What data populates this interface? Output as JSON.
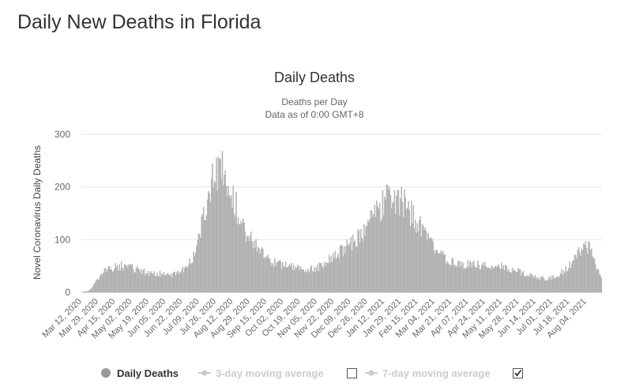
{
  "page": {
    "title": "Daily New Deaths in Florida"
  },
  "chart_data": {
    "type": "bar",
    "title": "Daily Deaths",
    "subtitle_lines": [
      "Deaths per Day",
      "Data as of 0:00 GMT+8"
    ],
    "ylabel": "Novel Coronavirus Daily Deaths",
    "xlabel": "",
    "ylim": [
      0,
      300
    ],
    "yticks": [
      0,
      100,
      200,
      300
    ],
    "grid": true,
    "x_start": "2020-03-12",
    "x_end": "2021-08-19",
    "xtick_labels": [
      "Mar 12, 2020",
      "Mar 29, 2020",
      "Apr 15, 2020",
      "May 02, 2020",
      "May 19, 2020",
      "Jun 05, 2020",
      "Jun 22, 2020",
      "Jul 09, 2020",
      "Jul 26, 2020",
      "Aug 12, 2020",
      "Aug 29, 2020",
      "Sep 15, 2020",
      "Oct 02, 2020",
      "Oct 19, 2020",
      "Nov 05, 2020",
      "Nov 22, 2020",
      "Dec 09, 2020",
      "Dec 26, 2020",
      "Jan 12, 2021",
      "Jan 29, 2021",
      "Feb 15, 2021",
      "Mar 04, 2021",
      "Mar 21, 2021",
      "Apr 07, 2021",
      "Apr 24, 2021",
      "May 11, 2021",
      "May 28, 2021",
      "Jun 14, 2021",
      "Jul 01, 2021",
      "Jul 18, 2021",
      "Aug 04, 2021"
    ],
    "series": [
      {
        "name": "Daily Deaths",
        "color": "#bdbdbd",
        "keypoints": [
          [
            "2020-03-12",
            0
          ],
          [
            "2020-03-18",
            2
          ],
          [
            "2020-03-22",
            8
          ],
          [
            "2020-03-26",
            18
          ],
          [
            "2020-03-31",
            30
          ],
          [
            "2020-04-04",
            40
          ],
          [
            "2020-04-10",
            45
          ],
          [
            "2020-04-16",
            48
          ],
          [
            "2020-04-22",
            50
          ],
          [
            "2020-04-28",
            48
          ],
          [
            "2020-05-04",
            45
          ],
          [
            "2020-05-10",
            40
          ],
          [
            "2020-05-20",
            36
          ],
          [
            "2020-05-30",
            35
          ],
          [
            "2020-06-08",
            33
          ],
          [
            "2020-06-18",
            35
          ],
          [
            "2020-06-25",
            45
          ],
          [
            "2020-07-02",
            65
          ],
          [
            "2020-07-09",
            110
          ],
          [
            "2020-07-15",
            165
          ],
          [
            "2020-07-20",
            200
          ],
          [
            "2020-07-26",
            222
          ],
          [
            "2020-08-01",
            228
          ],
          [
            "2020-08-06",
            215
          ],
          [
            "2020-08-12",
            180
          ],
          [
            "2020-08-18",
            145
          ],
          [
            "2020-08-24",
            120
          ],
          [
            "2020-08-30",
            100
          ],
          [
            "2020-09-05",
            85
          ],
          [
            "2020-09-12",
            70
          ],
          [
            "2020-09-20",
            58
          ],
          [
            "2020-09-28",
            52
          ],
          [
            "2020-10-08",
            48
          ],
          [
            "2020-10-18",
            44
          ],
          [
            "2020-10-28",
            45
          ],
          [
            "2020-11-07",
            48
          ],
          [
            "2020-11-15",
            58
          ],
          [
            "2020-11-25",
            72
          ],
          [
            "2020-12-05",
            88
          ],
          [
            "2020-12-12",
            98
          ],
          [
            "2020-12-20",
            110
          ],
          [
            "2020-12-28",
            130
          ],
          [
            "2021-01-05",
            155
          ],
          [
            "2021-01-12",
            172
          ],
          [
            "2021-01-18",
            185
          ],
          [
            "2021-01-24",
            178
          ],
          [
            "2021-02-01",
            165
          ],
          [
            "2021-02-08",
            150
          ],
          [
            "2021-02-15",
            130
          ],
          [
            "2021-02-22",
            108
          ],
          [
            "2021-03-01",
            90
          ],
          [
            "2021-03-08",
            75
          ],
          [
            "2021-03-15",
            62
          ],
          [
            "2021-03-22",
            56
          ],
          [
            "2021-04-01",
            52
          ],
          [
            "2021-04-12",
            53
          ],
          [
            "2021-04-24",
            52
          ],
          [
            "2021-05-05",
            50
          ],
          [
            "2021-05-15",
            46
          ],
          [
            "2021-05-25",
            40
          ],
          [
            "2021-06-05",
            34
          ],
          [
            "2021-06-15",
            28
          ],
          [
            "2021-06-25",
            26
          ],
          [
            "2021-07-03",
            30
          ],
          [
            "2021-07-12",
            40
          ],
          [
            "2021-07-20",
            55
          ],
          [
            "2021-07-27",
            75
          ],
          [
            "2021-08-02",
            88
          ],
          [
            "2021-08-07",
            85
          ],
          [
            "2021-08-12",
            55
          ],
          [
            "2021-08-16",
            40
          ],
          [
            "2021-08-19",
            25
          ]
        ]
      }
    ],
    "legend": {
      "placement": "bottom-center",
      "items": [
        {
          "label": "Daily Deaths",
          "state": "active"
        },
        {
          "label": "3-day moving average",
          "state": "hidden",
          "checkbox": "unchecked"
        },
        {
          "label": "7-day moving average",
          "state": "hidden",
          "checkbox": "checked"
        }
      ]
    }
  }
}
